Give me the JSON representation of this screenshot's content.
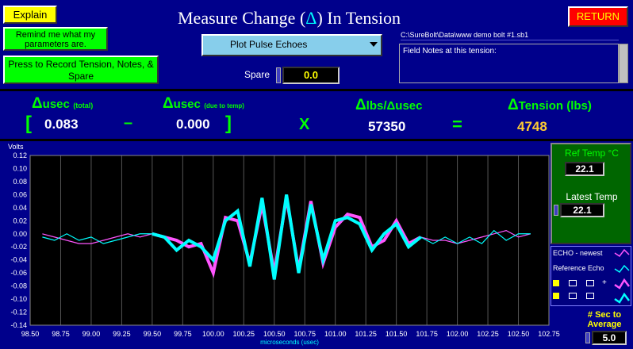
{
  "buttons": {
    "explain": "Explain",
    "remind": "Remind me what my parameters are.",
    "record": "Press to Record Tension, Notes, & Spare",
    "return": "RETURN"
  },
  "title": {
    "prefix": "Measure Change (",
    "delta": "Δ",
    "suffix": ") In Tension"
  },
  "plot_select": {
    "value": "Plot Pulse Echoes"
  },
  "spare": {
    "label": "Spare",
    "value": "0.0"
  },
  "file_path": "C:\\SureBolt\\Data\\www demo bolt #1.sb1",
  "notes": {
    "label": "Field Notes at this tension:"
  },
  "calc": {
    "total_label": "usec",
    "total_sub": "(total)",
    "total_value": "0.083",
    "temp_label": "usec",
    "temp_sub": "(due to temp)",
    "temp_value": "0.000",
    "ratio_label": "lbs/Δusec",
    "ratio_value": "57350",
    "tension_label": "Tension (lbs)",
    "tension_value": "4748",
    "delta": "Δ",
    "bracket_open": "[",
    "bracket_close": "]",
    "minus": "–",
    "times": "X",
    "equals": "="
  },
  "temps": {
    "ref_label": "Ref Temp °C",
    "ref_value": "22.1",
    "latest_label": "Latest Temp",
    "latest_value": "22.1"
  },
  "average": {
    "label": "# Sec to Average",
    "value": "5.0"
  },
  "legend": {
    "echo_newest": "ECHO - newest",
    "reference_echo": "Reference Echo"
  },
  "colors": {
    "echo_newest": "#ff55ff",
    "reference_echo": "#00ffff"
  },
  "chart_data": {
    "type": "line",
    "ylabel": "Volts",
    "xlabel": "microseconds (usec)",
    "ylim": [
      -0.14,
      0.12
    ],
    "xlim": [
      98.5,
      102.75
    ],
    "yticks": [
      "0.12",
      "0.10",
      "0.08",
      "0.06",
      "0.04",
      "0.02",
      "0.00",
      "-0.02",
      "-0.04",
      "-0.06",
      "-0.08",
      "-0.10",
      "-0.12",
      "-0.14"
    ],
    "xticks": [
      "98.50",
      "98.75",
      "99.00",
      "99.25",
      "99.50",
      "99.75",
      "100.00",
      "100.25",
      "100.50",
      "100.75",
      "101.00",
      "101.25",
      "101.50",
      "101.75",
      "102.00",
      "102.25",
      "102.50",
      "102.75"
    ],
    "grid": true,
    "series": [
      {
        "name": "ECHO - newest",
        "color": "#ff55ff",
        "x": [
          98.6,
          98.7,
          98.8,
          98.9,
          99.0,
          99.1,
          99.2,
          99.3,
          99.4,
          99.5,
          99.6,
          99.7,
          99.8,
          99.9,
          100.0,
          100.1,
          100.2,
          100.3,
          100.4,
          100.5,
          100.6,
          100.7,
          100.8,
          100.9,
          101.0,
          101.1,
          101.2,
          101.3,
          101.4,
          101.5,
          101.6,
          101.7,
          101.8,
          101.9,
          102.0,
          102.1,
          102.2,
          102.3,
          102.4,
          102.5,
          102.6
        ],
        "y": [
          0.0,
          -0.005,
          -0.01,
          -0.015,
          -0.015,
          -0.01,
          -0.005,
          0.0,
          -0.005,
          0.0,
          -0.005,
          -0.01,
          -0.02,
          -0.015,
          -0.06,
          0.025,
          0.02,
          -0.045,
          0.045,
          -0.06,
          0.055,
          -0.055,
          0.05,
          -0.045,
          0.01,
          0.03,
          0.025,
          -0.02,
          -0.01,
          0.02,
          -0.015,
          -0.005,
          -0.01,
          -0.01,
          -0.015,
          -0.01,
          -0.005,
          0.0,
          0.005,
          -0.005,
          0.0
        ]
      },
      {
        "name": "Reference Echo",
        "color": "#00ffff",
        "x": [
          98.6,
          98.7,
          98.8,
          98.9,
          99.0,
          99.1,
          99.2,
          99.3,
          99.4,
          99.5,
          99.6,
          99.7,
          99.8,
          99.9,
          100.0,
          100.1,
          100.2,
          100.3,
          100.4,
          100.5,
          100.6,
          100.7,
          100.8,
          100.9,
          101.0,
          101.1,
          101.2,
          101.3,
          101.4,
          101.5,
          101.6,
          101.7,
          101.8,
          101.9,
          102.0,
          102.1,
          102.2,
          102.3,
          102.4,
          102.5,
          102.6
        ],
        "y": [
          -0.005,
          -0.01,
          0.0,
          -0.01,
          -0.005,
          -0.015,
          -0.01,
          -0.005,
          0.0,
          0.0,
          -0.005,
          -0.025,
          -0.01,
          -0.02,
          -0.04,
          0.02,
          0.035,
          -0.05,
          0.055,
          -0.07,
          0.06,
          -0.06,
          0.045,
          -0.04,
          0.02,
          0.025,
          0.015,
          -0.025,
          0.0,
          0.015,
          -0.02,
          -0.005,
          -0.015,
          -0.005,
          -0.015,
          -0.005,
          -0.015,
          0.005,
          -0.01,
          0.0,
          0.0
        ]
      }
    ]
  }
}
